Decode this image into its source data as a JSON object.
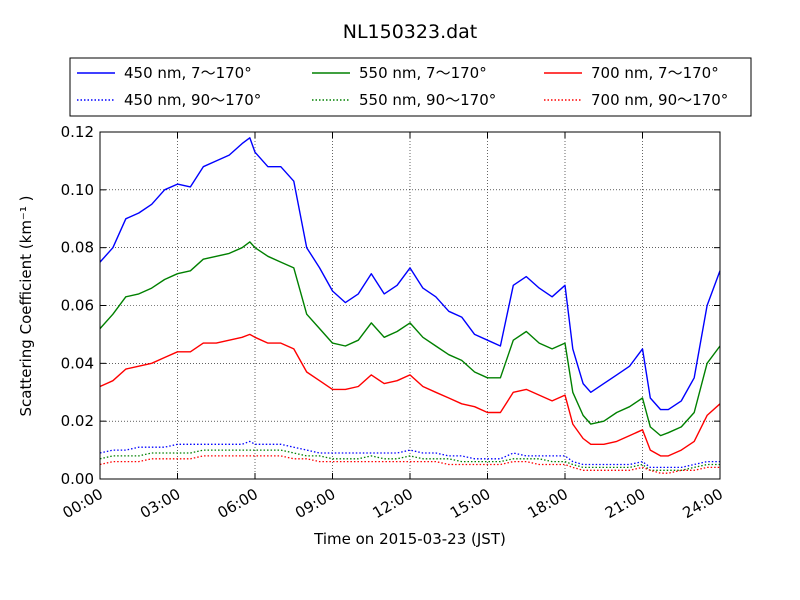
{
  "chart_data": {
    "type": "line",
    "title": "NL150323.dat",
    "xlabel": "Time on 2015-03-23 (JST)",
    "ylabel": "Scattering Coefficient (km⁻¹ )",
    "xlim": [
      0,
      24
    ],
    "ylim": [
      0.0,
      0.12
    ],
    "x_tick_values": [
      0,
      3,
      6,
      9,
      12,
      15,
      18,
      21,
      24
    ],
    "x_tick_labels": [
      "00:00",
      "03:00",
      "06:00",
      "09:00",
      "12:00",
      "15:00",
      "18:00",
      "21:00",
      "24:00"
    ],
    "y_tick_values": [
      0.0,
      0.02,
      0.04,
      0.06,
      0.08,
      0.1,
      0.12
    ],
    "y_tick_labels": [
      "0.00",
      "0.02",
      "0.04",
      "0.06",
      "0.08",
      "0.10",
      "0.12"
    ],
    "grid": true,
    "legend_placement": "above plot, 3 columns",
    "x": [
      0,
      0.5,
      1,
      1.5,
      2,
      2.5,
      3,
      3.5,
      4,
      4.5,
      5,
      5.5,
      5.8,
      6,
      6.5,
      7,
      7.5,
      8,
      8.5,
      9,
      9.5,
      10,
      10.5,
      11,
      11.5,
      12,
      12.5,
      13,
      13.5,
      14,
      14.5,
      15,
      15.5,
      16,
      16.5,
      17,
      17.5,
      18,
      18.3,
      18.7,
      19,
      19.5,
      20,
      20.5,
      21,
      21.3,
      21.7,
      22,
      22.5,
      23,
      23.5,
      24
    ],
    "series": [
      {
        "name": "450 nm, 7～170°",
        "color": "#0000ff",
        "style": "solid",
        "values": [
          0.075,
          0.08,
          0.09,
          0.092,
          0.095,
          0.1,
          0.102,
          0.101,
          0.108,
          0.11,
          0.112,
          0.116,
          0.118,
          0.113,
          0.108,
          0.108,
          0.103,
          0.08,
          0.073,
          0.065,
          0.061,
          0.064,
          0.071,
          0.064,
          0.067,
          0.073,
          0.066,
          0.063,
          0.058,
          0.056,
          0.05,
          0.048,
          0.046,
          0.067,
          0.07,
          0.066,
          0.063,
          0.067,
          0.045,
          0.033,
          0.03,
          0.033,
          0.036,
          0.039,
          0.045,
          0.028,
          0.024,
          0.024,
          0.027,
          0.035,
          0.06,
          0.072
        ]
      },
      {
        "name": "550 nm, 7～170°",
        "color": "#008000",
        "style": "solid",
        "values": [
          0.052,
          0.057,
          0.063,
          0.064,
          0.066,
          0.069,
          0.071,
          0.072,
          0.076,
          0.077,
          0.078,
          0.08,
          0.082,
          0.08,
          0.077,
          0.075,
          0.073,
          0.057,
          0.052,
          0.047,
          0.046,
          0.048,
          0.054,
          0.049,
          0.051,
          0.054,
          0.049,
          0.046,
          0.043,
          0.041,
          0.037,
          0.035,
          0.035,
          0.048,
          0.051,
          0.047,
          0.045,
          0.047,
          0.03,
          0.022,
          0.019,
          0.02,
          0.023,
          0.025,
          0.028,
          0.018,
          0.015,
          0.016,
          0.018,
          0.023,
          0.04,
          0.046
        ]
      },
      {
        "name": "700 nm, 7～170°",
        "color": "#ff0000",
        "style": "solid",
        "values": [
          0.032,
          0.034,
          0.038,
          0.039,
          0.04,
          0.042,
          0.044,
          0.044,
          0.047,
          0.047,
          0.048,
          0.049,
          0.05,
          0.049,
          0.047,
          0.047,
          0.045,
          0.037,
          0.034,
          0.031,
          0.031,
          0.032,
          0.036,
          0.033,
          0.034,
          0.036,
          0.032,
          0.03,
          0.028,
          0.026,
          0.025,
          0.023,
          0.023,
          0.03,
          0.031,
          0.029,
          0.027,
          0.029,
          0.019,
          0.014,
          0.012,
          0.012,
          0.013,
          0.015,
          0.017,
          0.01,
          0.008,
          0.008,
          0.01,
          0.013,
          0.022,
          0.026
        ]
      },
      {
        "name": "450 nm, 90～170°",
        "color": "#0000ff",
        "style": "dotted",
        "values": [
          0.009,
          0.01,
          0.01,
          0.011,
          0.011,
          0.011,
          0.012,
          0.012,
          0.012,
          0.012,
          0.012,
          0.012,
          0.013,
          0.012,
          0.012,
          0.012,
          0.011,
          0.01,
          0.009,
          0.009,
          0.009,
          0.009,
          0.009,
          0.009,
          0.009,
          0.01,
          0.009,
          0.009,
          0.008,
          0.008,
          0.007,
          0.007,
          0.007,
          0.009,
          0.008,
          0.008,
          0.008,
          0.008,
          0.006,
          0.005,
          0.005,
          0.005,
          0.005,
          0.005,
          0.006,
          0.004,
          0.004,
          0.004,
          0.004,
          0.005,
          0.006,
          0.006
        ]
      },
      {
        "name": "550 nm, 90～170°",
        "color": "#008000",
        "style": "dotted",
        "values": [
          0.007,
          0.008,
          0.008,
          0.008,
          0.009,
          0.009,
          0.009,
          0.009,
          0.01,
          0.01,
          0.01,
          0.01,
          0.01,
          0.01,
          0.01,
          0.01,
          0.009,
          0.008,
          0.008,
          0.007,
          0.007,
          0.007,
          0.008,
          0.007,
          0.007,
          0.008,
          0.007,
          0.007,
          0.007,
          0.006,
          0.006,
          0.006,
          0.006,
          0.007,
          0.007,
          0.007,
          0.006,
          0.006,
          0.005,
          0.004,
          0.004,
          0.004,
          0.004,
          0.004,
          0.005,
          0.003,
          0.003,
          0.003,
          0.003,
          0.004,
          0.005,
          0.005
        ]
      },
      {
        "name": "700 nm, 90～170°",
        "color": "#ff0000",
        "style": "dotted",
        "values": [
          0.005,
          0.006,
          0.006,
          0.006,
          0.007,
          0.007,
          0.007,
          0.007,
          0.008,
          0.008,
          0.008,
          0.008,
          0.008,
          0.008,
          0.008,
          0.008,
          0.007,
          0.007,
          0.006,
          0.006,
          0.006,
          0.006,
          0.006,
          0.006,
          0.006,
          0.006,
          0.006,
          0.006,
          0.005,
          0.005,
          0.005,
          0.005,
          0.005,
          0.006,
          0.006,
          0.005,
          0.005,
          0.005,
          0.004,
          0.003,
          0.003,
          0.003,
          0.003,
          0.003,
          0.004,
          0.003,
          0.002,
          0.002,
          0.003,
          0.003,
          0.004,
          0.004
        ]
      }
    ]
  }
}
